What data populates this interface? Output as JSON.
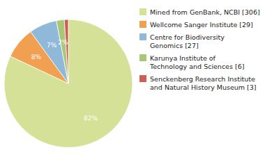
{
  "chart_data": {
    "type": "pie",
    "categories": [
      "Mined from GenBank, NCBI [306]",
      "Wellcome Sanger Institute [29]",
      "Centre for Biodiversity\nGenomics [27]",
      "Karunya Institute of\nTechnology and Sciences [6]",
      "Senckenberg Research Institute\nand Natural History Museum [3]"
    ],
    "values": [
      82,
      8,
      7,
      2,
      1
    ],
    "value_labels": [
      "82%",
      "8%",
      "7%",
      "2%",
      null
    ],
    "colors": [
      "#d4e196",
      "#f0a050",
      "#90b8d8",
      "#a8c878",
      "#cc6055"
    ],
    "data_labels": true,
    "legend": "right"
  }
}
